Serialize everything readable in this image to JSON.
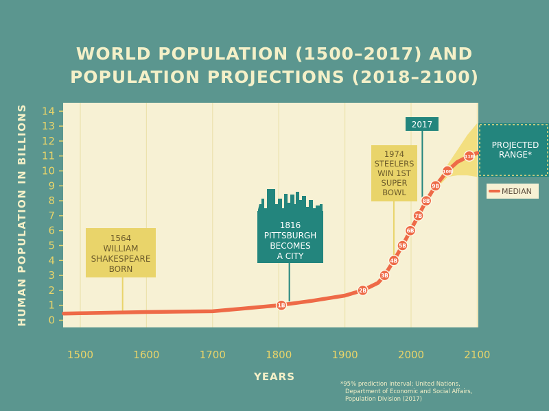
{
  "title_lines": [
    "WORLD POPULATION (1500–2017) AND",
    "POPULATION PROJECTIONS (2018–2100)"
  ],
  "colors": {
    "background": "#5b968f",
    "plot_bg": "#f7f1d4",
    "grid": "#ece2ad",
    "line": "#ee6a47",
    "callout_yellow": "#e9d46a",
    "callout_teal": "#23857d",
    "range": "#f3df80",
    "axis_text": "#e9d46a"
  },
  "chart_data": {
    "type": "line",
    "title": "WORLD POPULATION (1500–2017) AND POPULATION PROJECTIONS (2018–2100)",
    "xlabel": "YEARS",
    "ylabel": "HUMAN POPULATION IN BILLIONS",
    "xlim": [
      1475,
      2100
    ],
    "ylim": [
      -0.5,
      14.5
    ],
    "x_ticks": [
      1500,
      1600,
      1700,
      1800,
      1900,
      2000,
      2100
    ],
    "y_ticks": [
      0,
      1,
      2,
      3,
      4,
      5,
      6,
      7,
      8,
      9,
      10,
      11,
      12,
      13,
      14
    ],
    "grid": "vertical",
    "series": [
      {
        "name": "MEDIAN",
        "x": [
          1475,
          1500,
          1600,
          1700,
          1750,
          1800,
          1850,
          1900,
          1927,
          1950,
          1960,
          1974,
          1987,
          1999,
          2011,
          2017,
          2023,
          2037,
          2055,
          2070,
          2088,
          2100
        ],
        "y": [
          0.45,
          0.47,
          0.55,
          0.6,
          0.8,
          1.0,
          1.3,
          1.65,
          2.0,
          2.5,
          3.0,
          4.0,
          5.0,
          6.0,
          7.0,
          7.5,
          8.0,
          9.0,
          10.0,
          10.6,
          11.0,
          11.2
        ]
      }
    ],
    "milestones": [
      {
        "year": 1804,
        "value": 1,
        "label": "1B"
      },
      {
        "year": 1927,
        "value": 2,
        "label": "2B"
      },
      {
        "year": 1960,
        "value": 3,
        "label": "3B"
      },
      {
        "year": 1974,
        "value": 4,
        "label": "4B"
      },
      {
        "year": 1987,
        "value": 5,
        "label": "5B"
      },
      {
        "year": 1999,
        "value": 6,
        "label": "6B"
      },
      {
        "year": 2011,
        "value": 7,
        "label": "7B"
      },
      {
        "year": 2023,
        "value": 8,
        "label": "8B"
      },
      {
        "year": 2037,
        "value": 9,
        "label": "9B"
      },
      {
        "year": 2055,
        "value": 10,
        "label": "10B"
      },
      {
        "year": 2088,
        "value": 11,
        "label": "11B"
      }
    ],
    "projected_range": {
      "x": [
        2040,
        2055,
        2070,
        2085,
        2100
      ],
      "low": [
        8.9,
        9.6,
        9.7,
        9.7,
        9.6
      ],
      "high": [
        9.3,
        10.4,
        11.4,
        12.4,
        13.2
      ]
    },
    "annotations": [
      {
        "year": 1564,
        "lines": [
          "1564",
          "WILLIAM",
          "SHAKESPEARE",
          "BORN"
        ],
        "style": "yellow"
      },
      {
        "year": 1816,
        "lines": [
          "1816",
          "PITTSBURGH",
          "BECOMES",
          "A CITY"
        ],
        "style": "teal"
      },
      {
        "year": 1974,
        "lines": [
          "1974",
          "STEELERS",
          "WIN 1ST",
          "SUPER",
          "BOWL"
        ],
        "style": "yellow"
      },
      {
        "year": 2017,
        "lines": [
          "2017"
        ],
        "style": "teal"
      }
    ],
    "legend": {
      "range_label_lines": [
        "PROJECTED",
        "RANGE*"
      ],
      "median_label": "MEDIAN",
      "position": "right"
    },
    "footnote_lines": [
      "*95% prediction interval; United Nations,",
      "Department of Economic and Social Affairs,",
      "Population Division (2017)"
    ]
  }
}
